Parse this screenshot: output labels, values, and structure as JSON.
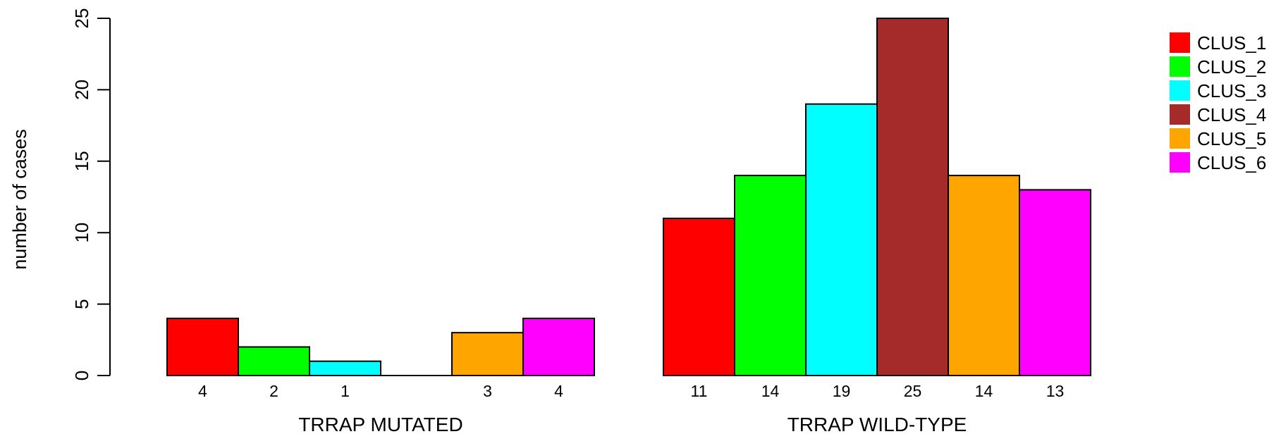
{
  "chart_data": {
    "type": "bar",
    "ylabel": "number of cases",
    "ylim": [
      0,
      25
    ],
    "yticks": [
      "0",
      "5",
      "10",
      "15",
      "20",
      "25"
    ],
    "groups": [
      "TRRAP MUTATED",
      "TRRAP WILD-TYPE"
    ],
    "series": [
      {
        "name": "CLUS_1",
        "color": "#ff0000",
        "values": [
          4,
          11
        ]
      },
      {
        "name": "CLUS_2",
        "color": "#00ff00",
        "values": [
          2,
          14
        ]
      },
      {
        "name": "CLUS_3",
        "color": "#00ffff",
        "values": [
          1,
          19
        ]
      },
      {
        "name": "CLUS_4",
        "color": "#a52a2a",
        "values": [
          0,
          25
        ]
      },
      {
        "name": "CLUS_5",
        "color": "#ffa500",
        "values": [
          3,
          14
        ]
      },
      {
        "name": "CLUS_6",
        "color": "#ff00ff",
        "values": [
          4,
          13
        ]
      }
    ],
    "count_labels": [
      [
        "4",
        "2",
        "1",
        "",
        "3",
        "4"
      ],
      [
        "11",
        "14",
        "19",
        "25",
        "14",
        "13"
      ]
    ],
    "legend_position": "top-right"
  }
}
